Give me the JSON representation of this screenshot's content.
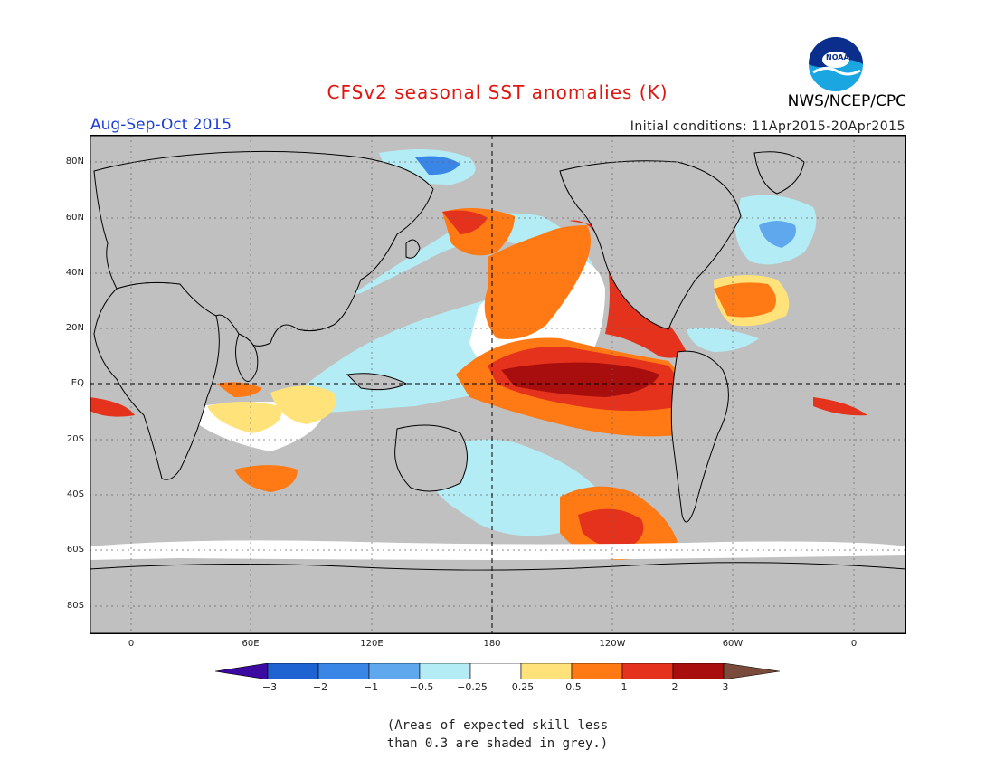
{
  "header": {
    "title": "CFSv2 seasonal SST anomalies (K)",
    "period": "Aug-Sep-Oct 2015",
    "initial_conditions": "Initial conditions: 11Apr2015-20Apr2015",
    "agency": "NWS/NCEP/CPC",
    "logo_text": "NOAA"
  },
  "axes": {
    "lat_labels": [
      "80N",
      "60N",
      "40N",
      "20N",
      "EQ",
      "20S",
      "40S",
      "60S",
      "80S"
    ],
    "lon_labels": [
      "0",
      "60E",
      "120E",
      "180",
      "120W",
      "60W",
      "0"
    ]
  },
  "colorbar": {
    "ticks": [
      "−3",
      "−2",
      "−1",
      "−0.5",
      "−0.25",
      "0.25",
      "0.5",
      "1",
      "2",
      "3"
    ],
    "colors": [
      "#3c0aa0",
      "#1f62d2",
      "#3a86e6",
      "#5fa8ee",
      "#b4ecf5",
      "#ffffff",
      "#ffe27a",
      "#ff7a14",
      "#e4321c",
      "#a80e0e",
      "#7a4a3a"
    ],
    "grey_color": "#c0c0c0"
  },
  "note": {
    "line1": "(Areas of expected skill less",
    "line2": "than 0.3 are shaded in grey.)"
  }
}
